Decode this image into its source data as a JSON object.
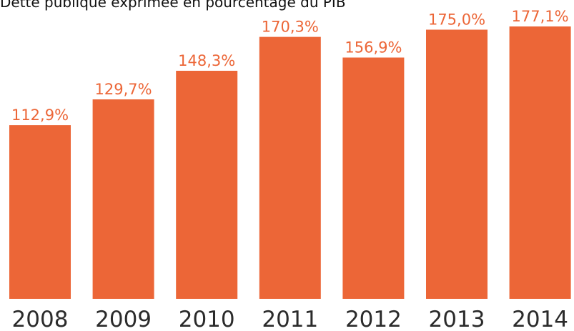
{
  "chart_data": {
    "type": "bar",
    "title": "Dette publique exprimée en pourcentage du PIB",
    "xlabel": "",
    "ylabel": "",
    "categories": [
      "2008",
      "2009",
      "2010",
      "2011",
      "2012",
      "2013",
      "2014"
    ],
    "values": [
      112.9,
      129.7,
      148.3,
      170.3,
      156.9,
      175.0,
      177.1
    ],
    "value_labels": [
      "112,9%",
      "129,7%",
      "148,3%",
      "170,3%",
      "156,9%",
      "175,0%",
      "177,1%"
    ],
    "ylim": [
      0,
      177.1
    ],
    "grid": false,
    "legend": "none",
    "colors": {
      "bar": "#EC6637",
      "value_label": "#EC6637",
      "tick_label": "#2B2B2B",
      "title": "#111111"
    }
  }
}
